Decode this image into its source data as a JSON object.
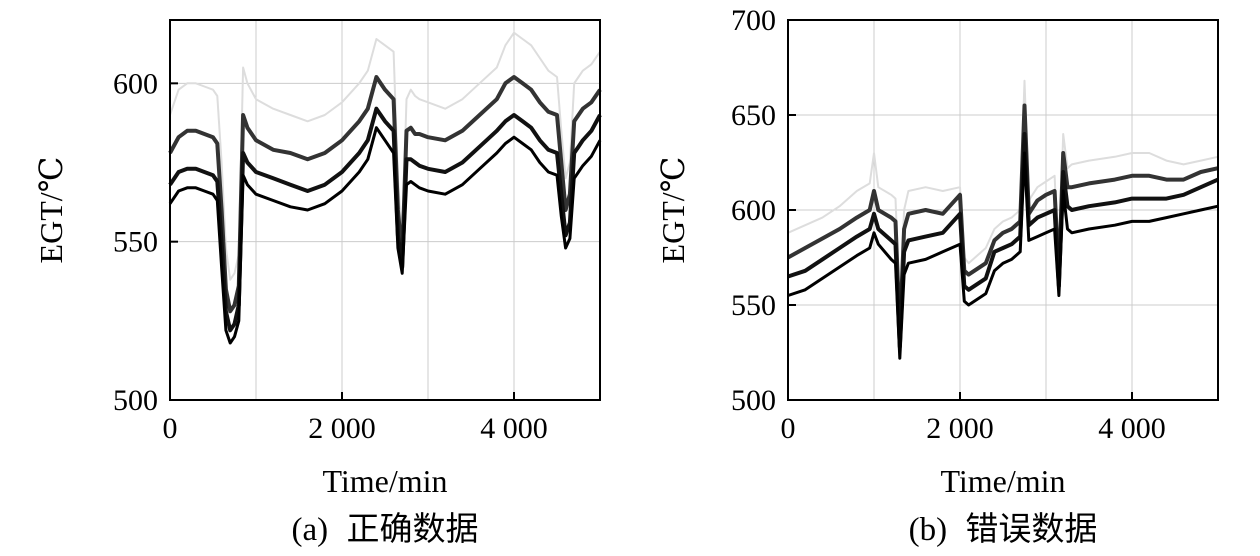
{
  "figure": {
    "panels": [
      {
        "caption_prefix": "(a)",
        "caption_text": "正确数据"
      },
      {
        "caption_prefix": "(b)",
        "caption_text": "错误数据"
      }
    ]
  },
  "chart_data": [
    {
      "type": "line",
      "title": "",
      "caption": "(a) 正确数据",
      "xlabel": "Time/min",
      "ylabel": "EGT/℃",
      "xlim": [
        0,
        5000
      ],
      "ylim": [
        500,
        620
      ],
      "xticks": [
        0,
        2000,
        4000
      ],
      "xtick_labels": [
        "0",
        "2 000",
        "4 000"
      ],
      "yticks": [
        500,
        550,
        600
      ],
      "ytick_labels": [
        "500",
        "550",
        "600"
      ],
      "grid": true,
      "colors": {
        "series": [
          "#dddddd",
          "#333333",
          "#111111",
          "#000000"
        ],
        "grid": "#cccccc"
      },
      "x": [
        0,
        100,
        200,
        300,
        400,
        500,
        550,
        600,
        650,
        700,
        750,
        800,
        850,
        900,
        1000,
        1200,
        1400,
        1600,
        1800,
        2000,
        2200,
        2300,
        2400,
        2500,
        2600,
        2650,
        2700,
        2750,
        2800,
        2850,
        2900,
        3000,
        3200,
        3400,
        3600,
        3800,
        3900,
        4000,
        4100,
        4200,
        4300,
        4400,
        4500,
        4550,
        4600,
        4650,
        4700,
        4750,
        4800,
        4900,
        5000
      ],
      "series": [
        {
          "values": [
            590,
            598,
            600,
            600,
            599,
            598,
            596,
            575,
            548,
            538,
            540,
            546,
            605,
            600,
            595,
            592,
            590,
            588,
            590,
            594,
            600,
            604,
            614,
            612,
            610,
            570,
            550,
            595,
            598,
            596,
            595,
            594,
            592,
            595,
            600,
            605,
            612,
            616,
            614,
            612,
            608,
            604,
            602,
            585,
            570,
            575,
            600,
            602,
            604,
            606,
            610
          ]
        },
        {
          "values": [
            578,
            583,
            585,
            585,
            584,
            583,
            581,
            560,
            535,
            528,
            530,
            536,
            590,
            586,
            582,
            579,
            578,
            576,
            578,
            582,
            588,
            592,
            602,
            598,
            595,
            560,
            545,
            585,
            586,
            584,
            584,
            583,
            582,
            585,
            590,
            595,
            600,
            602,
            600,
            598,
            594,
            591,
            590,
            575,
            560,
            565,
            588,
            590,
            592,
            594,
            598
          ]
        },
        {
          "values": [
            568,
            572,
            573,
            573,
            572,
            571,
            569,
            550,
            528,
            522,
            524,
            530,
            578,
            575,
            572,
            570,
            568,
            566,
            568,
            572,
            578,
            582,
            592,
            588,
            585,
            552,
            542,
            576,
            576,
            575,
            574,
            573,
            572,
            575,
            580,
            585,
            588,
            590,
            588,
            586,
            582,
            579,
            578,
            565,
            552,
            556,
            578,
            580,
            582,
            585,
            590
          ]
        },
        {
          "values": [
            562,
            566,
            567,
            567,
            566,
            565,
            563,
            542,
            522,
            518,
            520,
            525,
            571,
            568,
            565,
            563,
            561,
            560,
            562,
            566,
            572,
            576,
            586,
            582,
            578,
            548,
            540,
            568,
            569,
            568,
            567,
            566,
            565,
            568,
            573,
            578,
            581,
            583,
            581,
            579,
            575,
            572,
            571,
            558,
            548,
            551,
            570,
            572,
            574,
            577,
            582
          ]
        }
      ]
    },
    {
      "type": "line",
      "title": "",
      "caption": "(b) 错误数据",
      "xlabel": "Time/min",
      "ylabel": "EGT/℃",
      "xlim": [
        0,
        5000
      ],
      "ylim": [
        500,
        700
      ],
      "xticks": [
        0,
        2000,
        4000
      ],
      "xtick_labels": [
        "0",
        "2 000",
        "4 000"
      ],
      "yticks": [
        500,
        550,
        600,
        650,
        700
      ],
      "ytick_labels": [
        "500",
        "550",
        "600",
        "650",
        "700"
      ],
      "grid": true,
      "colors": {
        "series": [
          "#dddddd",
          "#333333",
          "#111111",
          "#000000"
        ],
        "grid": "#cccccc"
      },
      "x": [
        0,
        200,
        400,
        600,
        800,
        950,
        1000,
        1050,
        1200,
        1250,
        1300,
        1350,
        1400,
        1600,
        1800,
        2000,
        2050,
        2100,
        2300,
        2400,
        2500,
        2600,
        2700,
        2750,
        2800,
        2900,
        3000,
        3100,
        3150,
        3200,
        3250,
        3300,
        3500,
        3800,
        4000,
        4200,
        4400,
        4600,
        4800,
        5000
      ],
      "series": [
        {
          "values": [
            588,
            592,
            596,
            602,
            610,
            614,
            630,
            612,
            608,
            606,
            548,
            600,
            610,
            612,
            610,
            612,
            575,
            572,
            580,
            590,
            594,
            596,
            600,
            668,
            605,
            612,
            615,
            618,
            570,
            640,
            622,
            624,
            626,
            628,
            630,
            630,
            626,
            624,
            626,
            628
          ]
        },
        {
          "values": [
            575,
            580,
            585,
            590,
            596,
            600,
            610,
            600,
            596,
            594,
            535,
            590,
            598,
            600,
            598,
            608,
            568,
            566,
            572,
            584,
            588,
            590,
            594,
            655,
            598,
            605,
            608,
            610,
            565,
            630,
            612,
            612,
            614,
            616,
            618,
            618,
            616,
            616,
            620,
            622
          ]
        },
        {
          "values": [
            565,
            568,
            574,
            580,
            586,
            590,
            598,
            590,
            584,
            582,
            528,
            578,
            584,
            586,
            588,
            598,
            560,
            558,
            564,
            578,
            580,
            582,
            586,
            640,
            592,
            596,
            598,
            600,
            560,
            620,
            602,
            600,
            602,
            604,
            606,
            606,
            606,
            608,
            612,
            616
          ]
        },
        {
          "values": [
            555,
            558,
            564,
            570,
            576,
            580,
            588,
            582,
            574,
            572,
            522,
            566,
            572,
            574,
            578,
            582,
            552,
            550,
            556,
            568,
            572,
            574,
            578,
            630,
            584,
            586,
            588,
            590,
            555,
            610,
            590,
            588,
            590,
            592,
            594,
            594,
            596,
            598,
            600,
            602
          ]
        }
      ]
    }
  ]
}
